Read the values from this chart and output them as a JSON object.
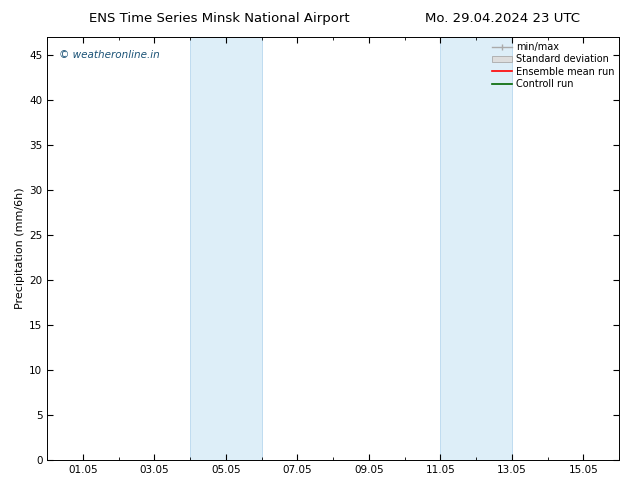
{
  "title_left": "ENS Time Series Minsk National Airport",
  "title_right": "Mo. 29.04.2024 23 UTC",
  "ylabel": "Precipitation (mm/6h)",
  "ylim": [
    0,
    47
  ],
  "yticks": [
    0,
    5,
    10,
    15,
    20,
    25,
    30,
    35,
    40,
    45
  ],
  "xlim": [
    0,
    16
  ],
  "xtick_labels": [
    "01.05",
    "03.05",
    "05.05",
    "07.05",
    "09.05",
    "11.05",
    "13.05",
    "15.05"
  ],
  "xtick_positions": [
    1,
    3,
    5,
    7,
    9,
    11,
    13,
    15
  ],
  "shaded_bands": [
    {
      "x_start": 4.0,
      "x_end": 6.0
    },
    {
      "x_start": 11.0,
      "x_end": 13.0
    }
  ],
  "band_color": "#ddeef8",
  "band_edge_color": "#b8d8ee",
  "watermark_text": "© weatheronline.in",
  "watermark_color": "#1a5276",
  "legend_labels": [
    "min/max",
    "Standard deviation",
    "Ensemble mean run",
    "Controll run"
  ],
  "background_color": "#ffffff",
  "title_fontsize": 9.5,
  "axis_label_fontsize": 8,
  "tick_fontsize": 7.5,
  "legend_fontsize": 7.0
}
